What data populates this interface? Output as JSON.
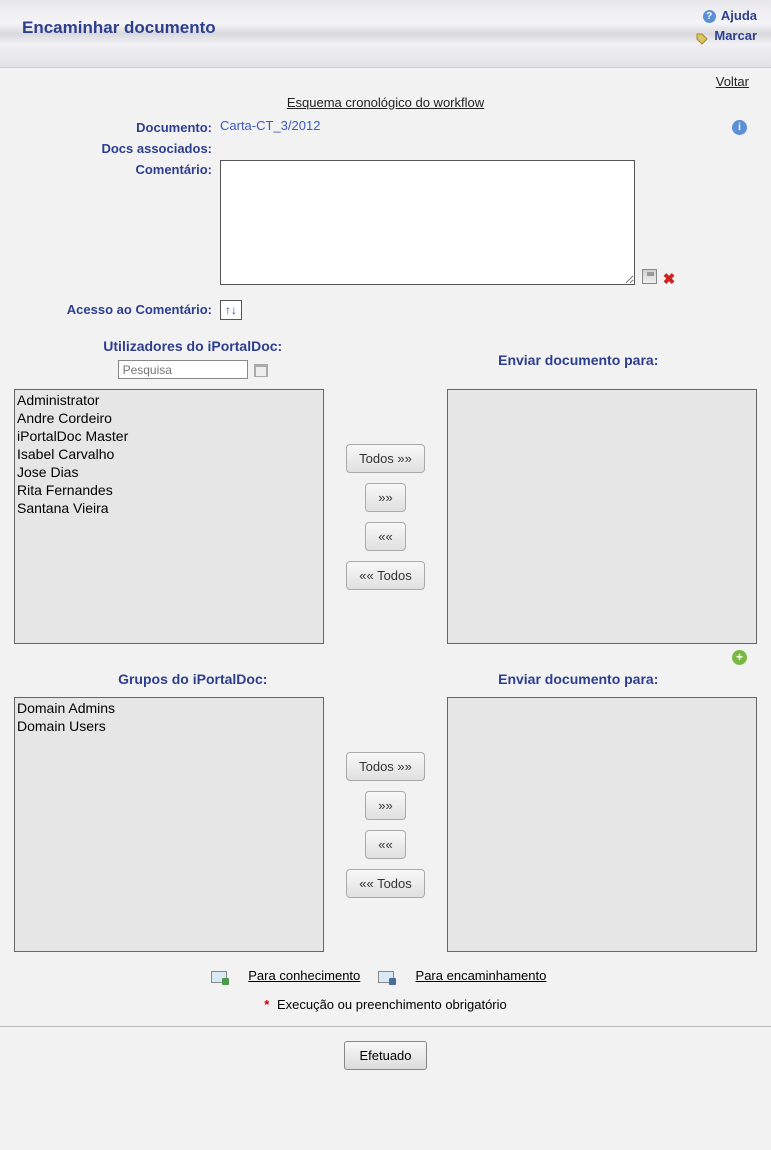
{
  "header": {
    "title": "Encaminhar documento",
    "help_label": "Ajuda",
    "mark_label": "Marcar"
  },
  "crumb": {
    "back_label": "Voltar"
  },
  "workflow": {
    "link_label": "Esquema cronológico do workflow"
  },
  "form": {
    "document_label": "Documento:",
    "document_value": "Carta-CT_3/2012",
    "assoc_label": "Docs associados:",
    "comment_label": "Comentário:",
    "access_label": "Acesso ao Comentário:",
    "access_symbol": "↑↓"
  },
  "users_section": {
    "left_title": "Utilizadores do iPortalDoc:",
    "right_title": "Enviar documento para:",
    "search_placeholder": "Pesquisa",
    "items": [
      "Administrator",
      "Andre Cordeiro",
      "iPortalDoc Master",
      "Isabel Carvalho",
      "Jose Dias",
      "Rita Fernandes",
      "Santana Vieira"
    ]
  },
  "groups_section": {
    "left_title": "Grupos do iPortalDoc:",
    "right_title": "Enviar documento para:",
    "items": [
      "Domain Admins",
      "Domain Users"
    ]
  },
  "move_buttons": {
    "all_right": "Todos »»",
    "right": "»»",
    "left": "««",
    "all_left": "«« Todos"
  },
  "footer": {
    "info_label": "Para conhecimento",
    "forward_label": "Para encaminhamento",
    "required_label": "Execução ou preenchimento obrigatório",
    "submit_label": "Efetuado"
  }
}
